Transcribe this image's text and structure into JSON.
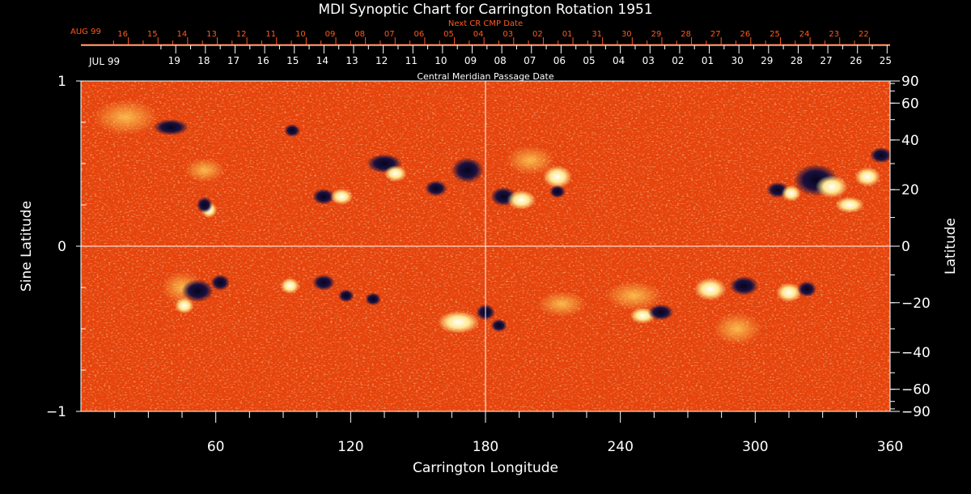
{
  "colors": {
    "background": "#000000",
    "text": "#ffffff",
    "top_axis_text": "#ff5a1e",
    "map_base": "#e8420a",
    "positive_polarity": "#fff4c0",
    "negative_polarity": "#0c0c30"
  },
  "chart_data": {
    "type": "heatmap",
    "title": "MDI Synoptic Chart for Carrington Rotation 1951",
    "xlabel": "Carrington Longitude",
    "ylabel_left": "Sine Latitude",
    "ylabel_right": "Latitude",
    "xlim": [
      0,
      360
    ],
    "ylim": [
      -1,
      1
    ],
    "x_ticks": [
      "60",
      "120",
      "180",
      "240",
      "300",
      "360"
    ],
    "y_ticks_left": [
      "1",
      "0",
      "−1"
    ],
    "y_ticks_right": [
      "90",
      "60",
      "40",
      "20",
      "0",
      "−20",
      "−40",
      "−60",
      "−90"
    ],
    "crosshair": {
      "longitude": 180,
      "sine_latitude": 0
    },
    "top_axis": {
      "next_rotation_title": "Next CR CMP Date",
      "next_rotation_month": "AUG 99",
      "next_rotation_dates": [
        "16",
        "15",
        "14",
        "13",
        "12",
        "11",
        "10",
        "09",
        "08",
        "07",
        "06",
        "05",
        "04",
        "03",
        "02",
        "01",
        "31",
        "30",
        "29",
        "28",
        "27",
        "26",
        "25",
        "24",
        "23",
        "22"
      ],
      "current_rotation_month": "JUL 99",
      "current_rotation_dates": [
        "19",
        "18",
        "17",
        "16",
        "15",
        "14",
        "13",
        "12",
        "11",
        "10",
        "09",
        "08",
        "07",
        "06",
        "05",
        "04",
        "03",
        "02",
        "01",
        "30",
        "29",
        "28",
        "27",
        "26",
        "25"
      ],
      "bottom_title": "Central Meridian Passage Date"
    },
    "grid": false
  }
}
